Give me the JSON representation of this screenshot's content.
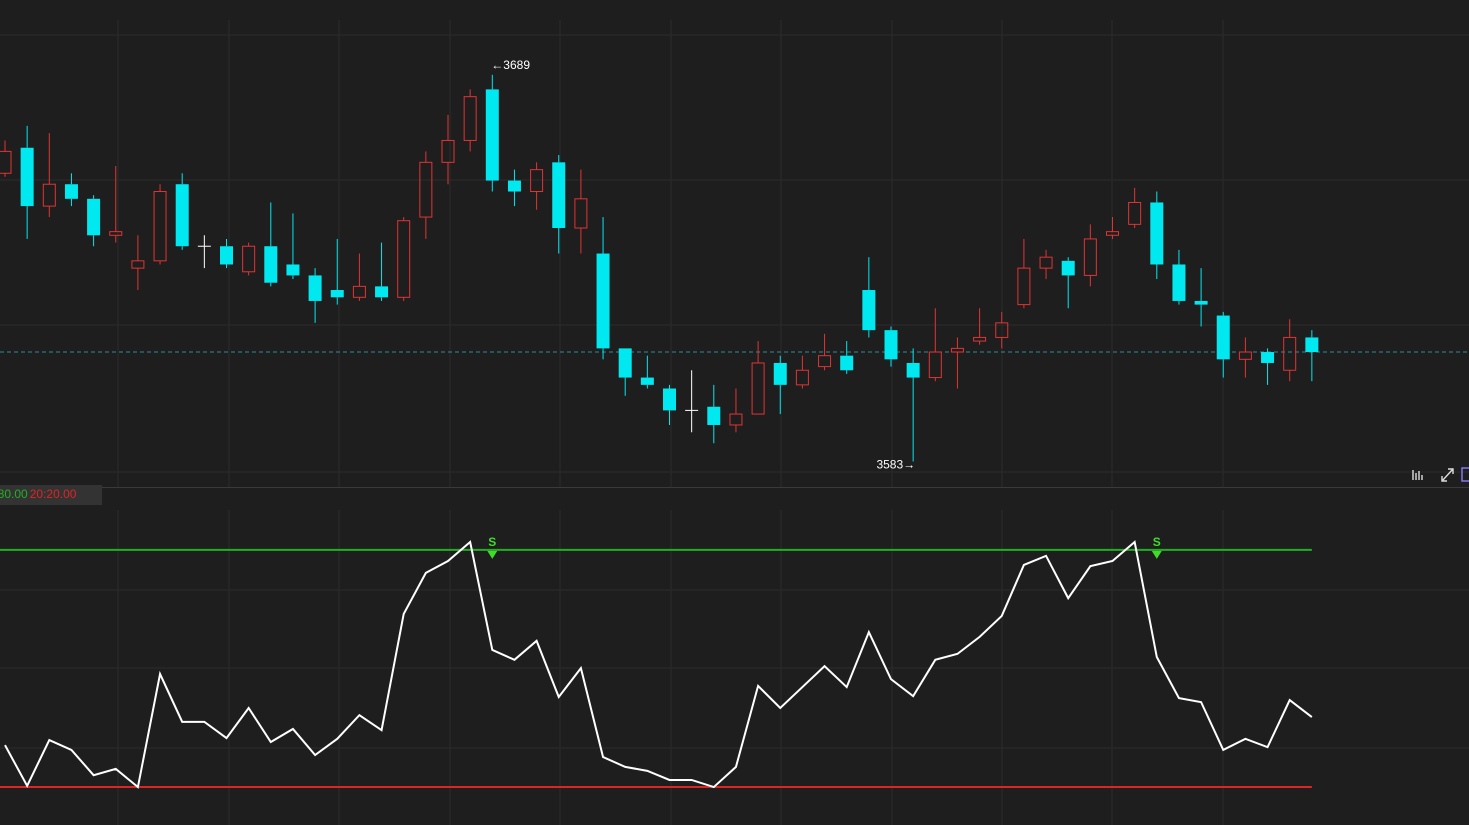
{
  "chart_data": [
    {
      "type": "candlestick",
      "open": [
        3662,
        3669,
        3653,
        3659,
        3655,
        3645,
        3636,
        3638,
        3659,
        3642,
        3642,
        3635,
        3642,
        3637,
        3634,
        3630,
        3628,
        3631,
        3628,
        3650,
        3665,
        3671,
        3685,
        3660,
        3657,
        3665,
        3647,
        3640,
        3614,
        3606,
        3603,
        3597,
        3598,
        3593,
        3596,
        3610,
        3604,
        3609,
        3612,
        3630,
        3619,
        3610,
        3606,
        3613,
        3616,
        3617,
        3626,
        3636,
        3638,
        3634,
        3645,
        3648,
        3654,
        3637,
        3627,
        3623,
        3611,
        3613,
        3608,
        3617
      ],
      "close": [
        3668,
        3653,
        3659,
        3655,
        3645,
        3646,
        3638,
        3657,
        3642,
        3642,
        3637,
        3642,
        3632,
        3634,
        3627,
        3628,
        3631,
        3628,
        3649,
        3665,
        3671,
        3683,
        3660,
        3657,
        3663,
        3647,
        3655,
        3614,
        3606,
        3604,
        3597,
        3597,
        3593,
        3596,
        3610,
        3604,
        3608,
        3612,
        3608,
        3619,
        3611,
        3606,
        3613,
        3614,
        3617,
        3621,
        3636,
        3639,
        3634,
        3644,
        3646,
        3654,
        3637,
        3627,
        3626,
        3611,
        3613,
        3610,
        3617,
        3613
      ],
      "high": [
        3671,
        3675,
        3673,
        3662,
        3656,
        3664,
        3645,
        3659,
        3662,
        3645,
        3644,
        3643,
        3654,
        3651,
        3636,
        3644,
        3640,
        3643,
        3650,
        3668,
        3678,
        3685,
        3689,
        3663,
        3665,
        3667,
        3663,
        3650,
        3614,
        3612,
        3604,
        3608,
        3604,
        3603,
        3616,
        3612,
        3612,
        3618,
        3616,
        3639,
        3620,
        3614,
        3625,
        3617,
        3625,
        3624,
        3644,
        3641,
        3639,
        3648,
        3650,
        3658,
        3657,
        3641,
        3636,
        3624,
        3617,
        3614,
        3622,
        3619
      ],
      "low": [
        3661,
        3644,
        3650,
        3653,
        3642,
        3643,
        3630,
        3637,
        3641,
        3636,
        3636,
        3634,
        3631,
        3633,
        3621,
        3626,
        3627,
        3627,
        3627,
        3644,
        3659,
        3668,
        3657,
        3653,
        3652,
        3640,
        3640,
        3611,
        3601,
        3603,
        3593,
        3591,
        3588,
        3591,
        3596,
        3596,
        3603,
        3608,
        3607,
        3617,
        3609,
        3583,
        3605,
        3603,
        3615,
        3614,
        3625,
        3633,
        3625,
        3631,
        3644,
        3647,
        3633,
        3626,
        3620,
        3606,
        3606,
        3604,
        3605,
        3605
      ],
      "up_color": "#e03434",
      "down_color": "#00e8f0",
      "flat_color": "#ffffff",
      "high_label": "←3689",
      "low_label": "3583→",
      "last_price": 3613,
      "ylim": [
        3576,
        3709.5
      ]
    },
    {
      "type": "line",
      "values": [
        30.6,
        20.3,
        31.9,
        29.4,
        23.0,
        24.6,
        20,
        48.6,
        36.5,
        36.5,
        32.4,
        40,
        31.4,
        34.7,
        28.1,
        32.2,
        38.2,
        34.4,
        63.8,
        74.2,
        77.2,
        82,
        54.7,
        52.2,
        57,
        42.8,
        50.1,
        27.6,
        25.1,
        24.1,
        21.8,
        21.8,
        20,
        25.1,
        45.6,
        40,
        45.3,
        50.6,
        45.3,
        59.2,
        47.3,
        43,
        52.2,
        53.7,
        58,
        63.3,
        76.2,
        78.5,
        67.8,
        75.9,
        77.2,
        82,
        52.9,
        42.5,
        41.5,
        29.4,
        32.2,
        30.1,
        42,
        37.7
      ],
      "color": "#ffffff",
      "levels": [
        {
          "value": 80,
          "label": "80:80.00",
          "color": "#22b022"
        },
        {
          "value": 20,
          "label": "20:20.00",
          "color": "#e02424"
        }
      ],
      "signal_label": "S",
      "signal_color": "#3fdc2a",
      "ylim": [
        10.4,
        90.1
      ]
    }
  ]
}
